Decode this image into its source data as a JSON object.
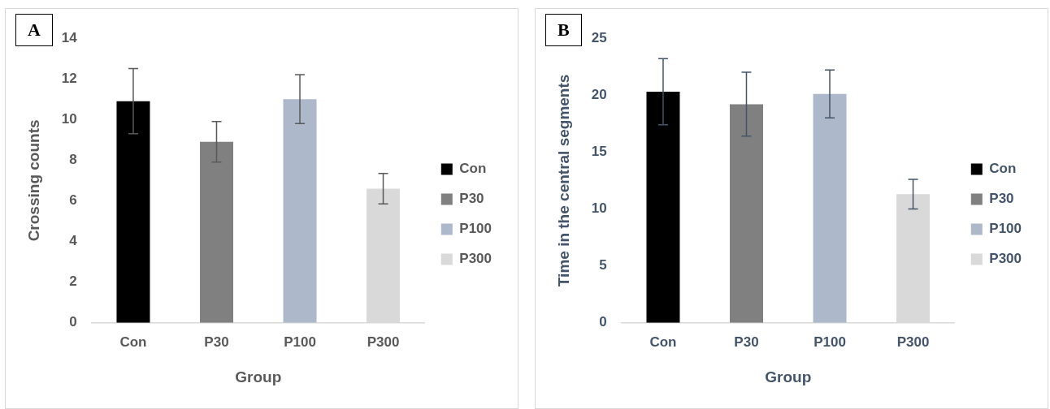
{
  "chart_data": [
    {
      "type": "bar",
      "title": "A",
      "xlabel": "Group",
      "ylabel": "Crossing counts",
      "categories": [
        "Con",
        "P30",
        "P100",
        "P300"
      ],
      "series": [
        {
          "name": "Con",
          "color": "#000000",
          "values": [
            10.9,
            null,
            null,
            null
          ],
          "errors": [
            1.6,
            null,
            null,
            null
          ]
        },
        {
          "name": "P30",
          "color": "#808080",
          "values": [
            null,
            8.9,
            null,
            null
          ],
          "errors": [
            null,
            1.0,
            null,
            null
          ]
        },
        {
          "name": "P100",
          "color": "#adb9ca",
          "values": [
            null,
            null,
            11.0,
            null
          ],
          "errors": [
            null,
            null,
            1.2,
            null
          ]
        },
        {
          "name": "P300",
          "color": "#d9d9d9",
          "values": [
            null,
            null,
            null,
            6.6
          ],
          "errors": [
            null,
            null,
            null,
            0.75
          ]
        }
      ],
      "ylim": [
        0,
        14
      ],
      "yticks": [
        0,
        2,
        4,
        6,
        8,
        10,
        12,
        14
      ],
      "grid": false,
      "legend": "right"
    },
    {
      "type": "bar",
      "title": "B",
      "xlabel": "Group",
      "ylabel": "Time in the central segments",
      "categories": [
        "Con",
        "P30",
        "P100",
        "P300"
      ],
      "series": [
        {
          "name": "Con",
          "color": "#000000",
          "values": [
            20.3,
            null,
            null,
            null
          ],
          "errors": [
            2.9,
            null,
            null,
            null
          ]
        },
        {
          "name": "P30",
          "color": "#808080",
          "values": [
            null,
            19.2,
            null,
            null
          ],
          "errors": [
            null,
            2.8,
            null,
            null
          ]
        },
        {
          "name": "P100",
          "color": "#adb9ca",
          "values": [
            null,
            null,
            20.1,
            null
          ],
          "errors": [
            null,
            null,
            2.1,
            null
          ]
        },
        {
          "name": "P300",
          "color": "#d9d9d9",
          "values": [
            null,
            null,
            null,
            11.3
          ],
          "errors": [
            null,
            null,
            null,
            1.3
          ]
        }
      ],
      "ylim": [
        0,
        25
      ],
      "yticks": [
        0,
        5,
        10,
        15,
        20,
        25
      ],
      "grid": false,
      "legend": "right"
    }
  ]
}
